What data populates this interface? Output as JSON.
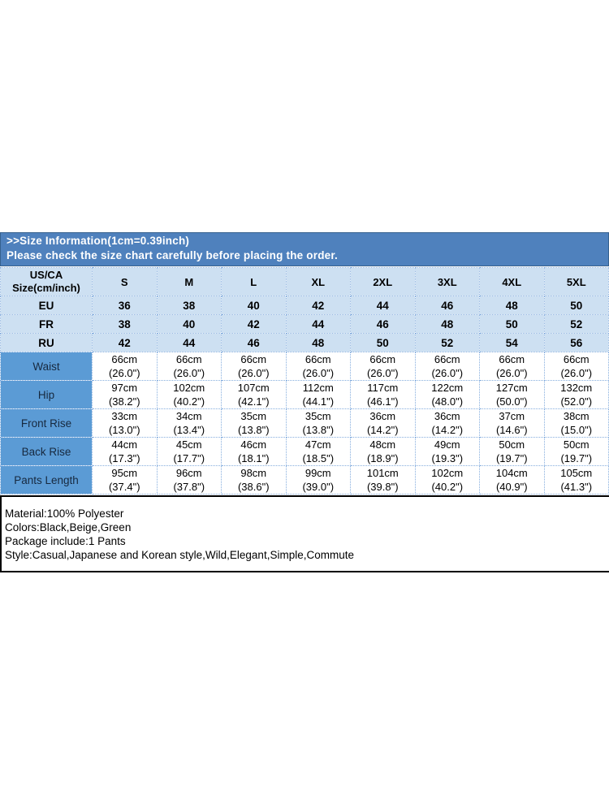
{
  "banner": {
    "title": ">>Size Information(1cm=0.39inch)",
    "subtitle": "Please check the size chart carefully before placing the order."
  },
  "size_table": {
    "corner_header": [
      "US/CA",
      "Size(cm/inch)"
    ],
    "size_headers": [
      "S",
      "M",
      "L",
      "XL",
      "2XL",
      "3XL",
      "4XL",
      "5XL"
    ],
    "region_rows": [
      {
        "label": "EU",
        "values": [
          "36",
          "38",
          "40",
          "42",
          "44",
          "46",
          "48",
          "50"
        ]
      },
      {
        "label": "FR",
        "values": [
          "38",
          "40",
          "42",
          "44",
          "46",
          "48",
          "50",
          "52"
        ]
      },
      {
        "label": "RU",
        "values": [
          "42",
          "44",
          "46",
          "48",
          "50",
          "52",
          "54",
          "56"
        ]
      }
    ],
    "measurement_rows": [
      {
        "label": "Waist",
        "values": [
          [
            "66cm",
            "(26.0\")"
          ],
          [
            "66cm",
            "(26.0\")"
          ],
          [
            "66cm",
            "(26.0\")"
          ],
          [
            "66cm",
            "(26.0\")"
          ],
          [
            "66cm",
            "(26.0\")"
          ],
          [
            "66cm",
            "(26.0\")"
          ],
          [
            "66cm",
            "(26.0\")"
          ],
          [
            "66cm",
            "(26.0\")"
          ]
        ]
      },
      {
        "label": "Hip",
        "values": [
          [
            "97cm",
            "(38.2\")"
          ],
          [
            "102cm",
            "(40.2\")"
          ],
          [
            "107cm",
            "(42.1\")"
          ],
          [
            "112cm",
            "(44.1\")"
          ],
          [
            "117cm",
            "(46.1\")"
          ],
          [
            "122cm",
            "(48.0\")"
          ],
          [
            "127cm",
            "(50.0\")"
          ],
          [
            "132cm",
            "(52.0\")"
          ]
        ]
      },
      {
        "label": "Front Rise",
        "values": [
          [
            "33cm",
            "(13.0\")"
          ],
          [
            "34cm",
            "(13.4\")"
          ],
          [
            "35cm",
            "(13.8\")"
          ],
          [
            "35cm",
            "(13.8\")"
          ],
          [
            "36cm",
            "(14.2\")"
          ],
          [
            "36cm",
            "(14.2\")"
          ],
          [
            "37cm",
            "(14.6\")"
          ],
          [
            "38cm",
            "(15.0\")"
          ]
        ]
      },
      {
        "label": "Back Rise",
        "values": [
          [
            "44cm",
            "(17.3\")"
          ],
          [
            "45cm",
            "(17.7\")"
          ],
          [
            "46cm",
            "(18.1\")"
          ],
          [
            "47cm",
            "(18.5\")"
          ],
          [
            "48cm",
            "(18.9\")"
          ],
          [
            "49cm",
            "(19.3\")"
          ],
          [
            "50cm",
            "(19.7\")"
          ],
          [
            "50cm",
            "(19.7\")"
          ]
        ]
      },
      {
        "label": "Pants Length",
        "values": [
          [
            "95cm",
            "(37.4\")"
          ],
          [
            "96cm",
            "(37.8\")"
          ],
          [
            "98cm",
            "(38.6\")"
          ],
          [
            "99cm",
            "(39.0\")"
          ],
          [
            "101cm",
            "(39.8\")"
          ],
          [
            "102cm",
            "(40.2\")"
          ],
          [
            "104cm",
            "(40.9\")"
          ],
          [
            "105cm",
            "(41.3\")"
          ]
        ]
      }
    ]
  },
  "product_info": {
    "lines": [
      "Material:100% Polyester",
      "Colors:Black,Beige,Green",
      "Package include:1 Pants",
      "Style:Casual,Japanese and Korean style,Wild,Elegant,Simple,Commute"
    ]
  },
  "colors": {
    "banner_bg": "#4f81bd",
    "header_cell_bg": "#cde0f2",
    "label_cell_bg": "#5b9bd5",
    "gridline": "#86aede",
    "banner_text": "#ffffff",
    "body_text": "#000000"
  }
}
